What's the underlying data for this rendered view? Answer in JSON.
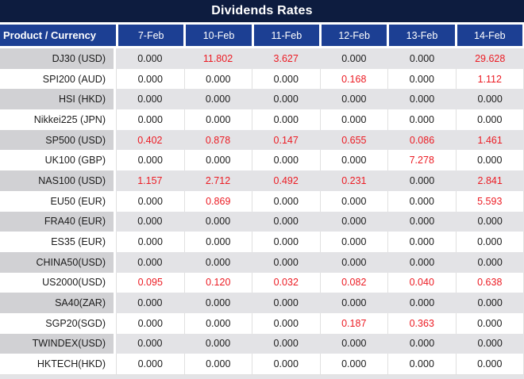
{
  "title": "Dividends Rates",
  "colors": {
    "title_bg": "#0D1C3F",
    "header_bg": "#1C3F93",
    "header_text": "#FFFFFF",
    "row_alt_label_bg": "#D1D1D4",
    "row_alt_value_bg": "#E3E3E6",
    "row_bg": "#FFFFFF",
    "grid_line": "#E0E0E0",
    "value_text": "#1B1B1B",
    "value_highlight_red": "#EC1B23"
  },
  "table": {
    "corner_header": "Product / Currency",
    "date_headers": [
      "7-Feb",
      "10-Feb",
      "11-Feb",
      "12-Feb",
      "13-Feb",
      "14-Feb"
    ],
    "rows": [
      {
        "product": "DJ30 (USD)",
        "values": [
          "0.000",
          "11.802",
          "3.627",
          "0.000",
          "0.000",
          "29.628"
        ]
      },
      {
        "product": "SPI200 (AUD)",
        "values": [
          "0.000",
          "0.000",
          "0.000",
          "0.168",
          "0.000",
          "1.112"
        ]
      },
      {
        "product": "HSI (HKD)",
        "values": [
          "0.000",
          "0.000",
          "0.000",
          "0.000",
          "0.000",
          "0.000"
        ]
      },
      {
        "product": "Nikkei225 (JPN)",
        "values": [
          "0.000",
          "0.000",
          "0.000",
          "0.000",
          "0.000",
          "0.000"
        ]
      },
      {
        "product": "SP500 (USD)",
        "values": [
          "0.402",
          "0.878",
          "0.147",
          "0.655",
          "0.086",
          "1.461"
        ]
      },
      {
        "product": "UK100 (GBP)",
        "values": [
          "0.000",
          "0.000",
          "0.000",
          "0.000",
          "7.278",
          "0.000"
        ]
      },
      {
        "product": "NAS100 (USD)",
        "values": [
          "1.157",
          "2.712",
          "0.492",
          "0.231",
          "0.000",
          "2.841"
        ]
      },
      {
        "product": "EU50 (EUR)",
        "values": [
          "0.000",
          "0.869",
          "0.000",
          "0.000",
          "0.000",
          "5.593"
        ]
      },
      {
        "product": "FRA40 (EUR)",
        "values": [
          "0.000",
          "0.000",
          "0.000",
          "0.000",
          "0.000",
          "0.000"
        ]
      },
      {
        "product": "ES35 (EUR)",
        "values": [
          "0.000",
          "0.000",
          "0.000",
          "0.000",
          "0.000",
          "0.000"
        ]
      },
      {
        "product": "CHINA50(USD)",
        "values": [
          "0.000",
          "0.000",
          "0.000",
          "0.000",
          "0.000",
          "0.000"
        ]
      },
      {
        "product": "US2000(USD)",
        "values": [
          "0.095",
          "0.120",
          "0.032",
          "0.082",
          "0.040",
          "0.638"
        ]
      },
      {
        "product": "SA40(ZAR)",
        "values": [
          "0.000",
          "0.000",
          "0.000",
          "0.000",
          "0.000",
          "0.000"
        ]
      },
      {
        "product": "SGP20(SGD)",
        "values": [
          "0.000",
          "0.000",
          "0.000",
          "0.187",
          "0.363",
          "0.000"
        ]
      },
      {
        "product": "TWINDEX(USD)",
        "values": [
          "0.000",
          "0.000",
          "0.000",
          "0.000",
          "0.000",
          "0.000"
        ]
      },
      {
        "product": "HKTECH(HKD)",
        "values": [
          "0.000",
          "0.000",
          "0.000",
          "0.000",
          "0.000",
          "0.000"
        ]
      }
    ]
  },
  "chart_data": {
    "type": "table",
    "title": "Dividends Rates",
    "columns": [
      "Product / Currency",
      "7-Feb",
      "10-Feb",
      "11-Feb",
      "12-Feb",
      "13-Feb",
      "14-Feb"
    ],
    "rows": [
      [
        "DJ30 (USD)",
        0.0,
        11.802,
        3.627,
        0.0,
        0.0,
        29.628
      ],
      [
        "SPI200 (AUD)",
        0.0,
        0.0,
        0.0,
        0.168,
        0.0,
        1.112
      ],
      [
        "HSI (HKD)",
        0.0,
        0.0,
        0.0,
        0.0,
        0.0,
        0.0
      ],
      [
        "Nikkei225 (JPN)",
        0.0,
        0.0,
        0.0,
        0.0,
        0.0,
        0.0
      ],
      [
        "SP500 (USD)",
        0.402,
        0.878,
        0.147,
        0.655,
        0.086,
        1.461
      ],
      [
        "UK100 (GBP)",
        0.0,
        0.0,
        0.0,
        0.0,
        7.278,
        0.0
      ],
      [
        "NAS100 (USD)",
        1.157,
        2.712,
        0.492,
        0.231,
        0.0,
        2.841
      ],
      [
        "EU50 (EUR)",
        0.0,
        0.869,
        0.0,
        0.0,
        0.0,
        5.593
      ],
      [
        "FRA40 (EUR)",
        0.0,
        0.0,
        0.0,
        0.0,
        0.0,
        0.0
      ],
      [
        "ES35 (EUR)",
        0.0,
        0.0,
        0.0,
        0.0,
        0.0,
        0.0
      ],
      [
        "CHINA50(USD)",
        0.0,
        0.0,
        0.0,
        0.0,
        0.0,
        0.0
      ],
      [
        "US2000(USD)",
        0.095,
        0.12,
        0.032,
        0.082,
        0.04,
        0.638
      ],
      [
        "SA40(ZAR)",
        0.0,
        0.0,
        0.0,
        0.0,
        0.0,
        0.0
      ],
      [
        "SGP20(SGD)",
        0.0,
        0.0,
        0.0,
        0.187,
        0.363,
        0.0
      ],
      [
        "TWINDEX(USD)",
        0.0,
        0.0,
        0.0,
        0.0,
        0.0,
        0.0
      ],
      [
        "HKTECH(HKD)",
        0.0,
        0.0,
        0.0,
        0.0,
        0.0,
        0.0
      ]
    ],
    "value_style_note": "non-zero values rendered in red, zero values in black",
    "row_striping": "odd rows gray, even rows white"
  }
}
